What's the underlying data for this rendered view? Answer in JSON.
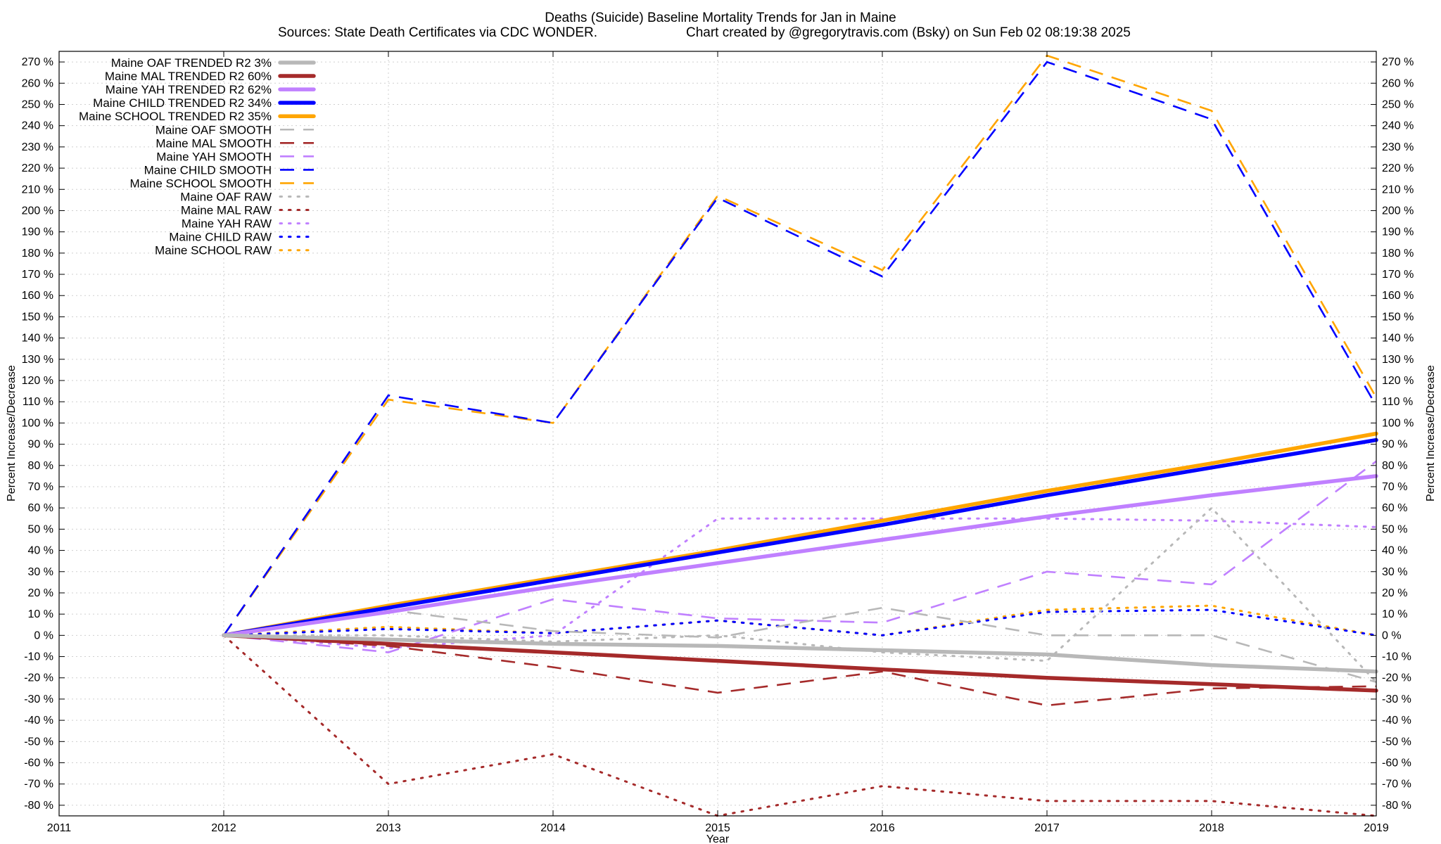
{
  "chart_data": {
    "type": "line",
    "title": "Deaths (Suicide)  Baseline Mortality Trends for Jan in Maine",
    "subtitle_left": "Sources: State Death Certificates via CDC WONDER.",
    "subtitle_right": "Chart created by @gregorytravis.com (Bsky) on Sun Feb 02 08:19:38 2025",
    "xlabel": "Year",
    "ylabel": "Percent Increase/Decrease",
    "xlim": [
      2011,
      2019
    ],
    "ylim": [
      -85,
      275
    ],
    "x_ticks": [
      2011,
      2012,
      2013,
      2014,
      2015,
      2016,
      2017,
      2018,
      2019
    ],
    "x_tick_labels": [
      "2011",
      "2012",
      "2013",
      "2014",
      "2015",
      "2016",
      "2017",
      "2018",
      "2019"
    ],
    "y_ticks": [
      270,
      260,
      250,
      240,
      230,
      220,
      210,
      200,
      190,
      180,
      170,
      160,
      150,
      140,
      130,
      120,
      110,
      100,
      90,
      80,
      70,
      60,
      50,
      40,
      30,
      20,
      10,
      0,
      -10,
      -20,
      -30,
      -40,
      -50,
      -60,
      -70,
      -80
    ],
    "y_tick_labels": [
      "270 %",
      "260 %",
      "250 %",
      "240 %",
      "230 %",
      "220 %",
      "210 %",
      "200 %",
      "190 %",
      "180 %",
      "170 %",
      "160 %",
      "150 %",
      "140 %",
      "130 %",
      "120 %",
      "110 %",
      "100 %",
      "90 %",
      "80 %",
      "70 %",
      "60 %",
      "50 %",
      "40 %",
      "30 %",
      "20 %",
      "10 %",
      "0 %",
      "-10 %",
      "-20 %",
      "-30 %",
      "-40 %",
      "-50 %",
      "-60 %",
      "-70 %",
      "-80 %"
    ],
    "grid": true,
    "legend_position": "top-left",
    "series": [
      {
        "name": "Maine OAF TRENDED R2  3%",
        "style": "solid",
        "color": "#b8b8b8",
        "x": [
          2012,
          2013,
          2014,
          2015,
          2016,
          2017,
          2018,
          2019
        ],
        "values": [
          0,
          -2,
          -4,
          -5,
          -7,
          -9,
          -14,
          -17
        ]
      },
      {
        "name": "Maine MAL TRENDED R2  60%",
        "style": "solid",
        "color": "#a52a2a",
        "x": [
          2012,
          2013,
          2014,
          2015,
          2016,
          2017,
          2018,
          2019
        ],
        "values": [
          0,
          -4,
          -8,
          -12,
          -16,
          -20,
          -23,
          -26
        ]
      },
      {
        "name": "Maine YAH TRENDED R2  62%",
        "style": "solid",
        "color": "#c080ff",
        "x": [
          2012,
          2013,
          2014,
          2015,
          2016,
          2017,
          2018,
          2019
        ],
        "values": [
          0,
          11,
          23,
          34,
          45,
          56,
          66,
          75
        ]
      },
      {
        "name": "Maine CHILD TRENDED R2  34%",
        "style": "solid",
        "color": "#0000ff",
        "x": [
          2012,
          2013,
          2014,
          2015,
          2016,
          2017,
          2018,
          2019
        ],
        "values": [
          0,
          13,
          26,
          39,
          52,
          66,
          79,
          92
        ]
      },
      {
        "name": "Maine SCHOOL TRENDED R2  35%",
        "style": "solid",
        "color": "#ffa500",
        "x": [
          2012,
          2013,
          2014,
          2015,
          2016,
          2017,
          2018,
          2019
        ],
        "values": [
          0,
          14,
          27,
          40,
          54,
          68,
          81,
          95
        ]
      },
      {
        "name": "Maine OAF SMOOTH",
        "style": "dashed",
        "color": "#b8b8b8",
        "x": [
          2012,
          2013,
          2014,
          2015,
          2016,
          2017,
          2018,
          2019
        ],
        "values": [
          0,
          12,
          2,
          -1,
          13,
          0,
          0,
          -22
        ]
      },
      {
        "name": "Maine MAL SMOOTH",
        "style": "dashed",
        "color": "#a52a2a",
        "x": [
          2012,
          2013,
          2014,
          2015,
          2016,
          2017,
          2018,
          2019
        ],
        "values": [
          0,
          -5,
          -15,
          -27,
          -17,
          -33,
          -25,
          -24
        ]
      },
      {
        "name": "Maine YAH SMOOTH",
        "style": "dashed",
        "color": "#c080ff",
        "x": [
          2012,
          2013,
          2014,
          2015,
          2016,
          2017,
          2018,
          2019
        ],
        "values": [
          0,
          -8,
          17,
          8,
          6,
          30,
          24,
          82
        ]
      },
      {
        "name": "Maine CHILD SMOOTH",
        "style": "dashed",
        "color": "#0000ff",
        "x": [
          2012,
          2013,
          2014,
          2015,
          2016,
          2017,
          2018,
          2019
        ],
        "values": [
          0,
          113,
          100,
          206,
          169,
          270,
          243,
          108
        ]
      },
      {
        "name": "Maine SCHOOL SMOOTH",
        "style": "dashed",
        "color": "#ffa500",
        "x": [
          2012,
          2013,
          2014,
          2015,
          2016,
          2017,
          2018,
          2019
        ],
        "values": [
          0,
          111,
          100,
          207,
          172,
          273,
          247,
          112
        ]
      },
      {
        "name": "Maine OAF RAW",
        "style": "dotted",
        "color": "#b8b8b8",
        "x": [
          2012,
          2013,
          2014,
          2015,
          2016,
          2017,
          2018,
          2019
        ],
        "values": [
          0,
          0,
          -3,
          0,
          -8,
          -12,
          60,
          -22
        ]
      },
      {
        "name": "Maine MAL RAW",
        "style": "dotted",
        "color": "#a52a2a",
        "x": [
          2012,
          2013,
          2014,
          2015,
          2016,
          2017,
          2018,
          2019
        ],
        "values": [
          0,
          -70,
          -56,
          -85,
          -71,
          -78,
          -78,
          -85
        ]
      },
      {
        "name": "Maine YAH RAW",
        "style": "dotted",
        "color": "#c080ff",
        "x": [
          2012,
          2013,
          2014,
          2015,
          2016,
          2017,
          2018,
          2019
        ],
        "values": [
          0,
          -6,
          0,
          55,
          55,
          55,
          54,
          51
        ]
      },
      {
        "name": "Maine CHILD RAW",
        "style": "dotted",
        "color": "#0000ff",
        "x": [
          2012,
          2013,
          2014,
          2015,
          2016,
          2017,
          2018,
          2019
        ],
        "values": [
          0,
          3,
          1,
          7,
          0,
          11,
          12,
          0
        ]
      },
      {
        "name": "Maine SCHOOL RAW",
        "style": "dotted",
        "color": "#ffa500",
        "x": [
          2012,
          2013,
          2014,
          2015,
          2016,
          2017,
          2018,
          2019
        ],
        "values": [
          0,
          4,
          1,
          7,
          0,
          12,
          14,
          0
        ]
      }
    ]
  }
}
